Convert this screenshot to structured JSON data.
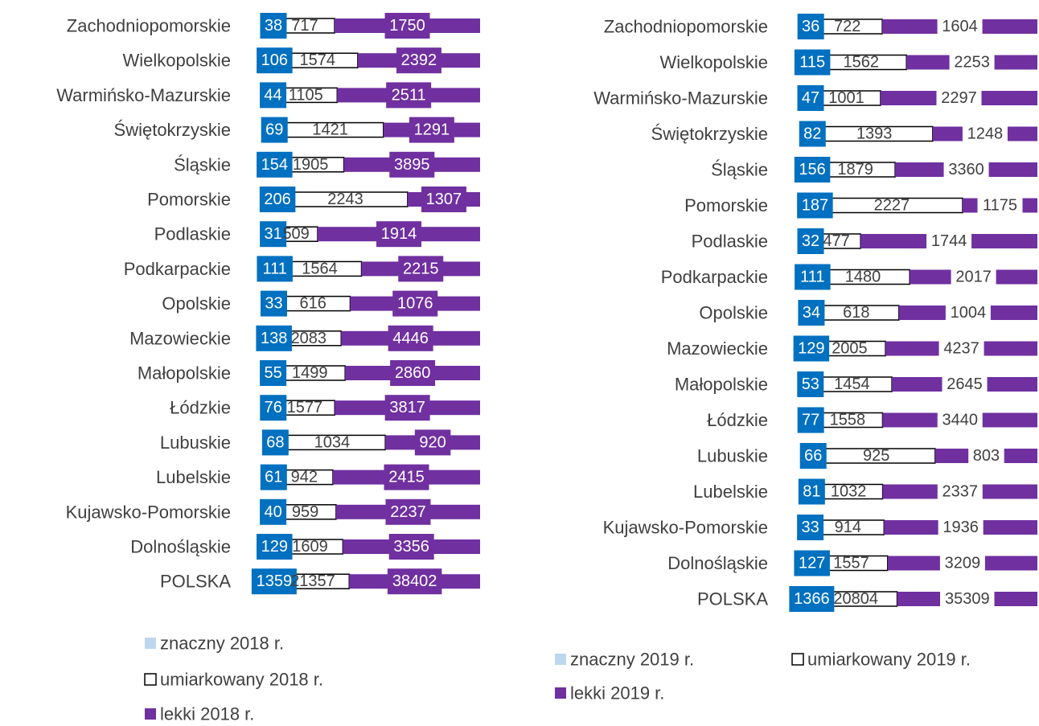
{
  "chart_data": [
    {
      "type": "bar",
      "orientation": "horizontal",
      "stacking": "percent",
      "legend": "bottom",
      "categories": [
        "Zachodniopomorskie",
        "Wielkopolskie",
        "Warmińsko-Mazurskie",
        "Świętokrzyskie",
        "Śląskie",
        "Pomorskie",
        "Podlaskie",
        "Podkarpackie",
        "Opolskie",
        "Mazowieckie",
        "Małopolskie",
        "Łódzkie",
        "Lubuskie",
        "Lubelskie",
        "Kujawsko-Pomorskie",
        "Dolnośląskie",
        "POLSKA"
      ],
      "series": [
        {
          "name": "znaczny 2018 r.",
          "color": "#bdd7ee",
          "values": [
            38,
            106,
            44,
            69,
            154,
            206,
            31,
            111,
            33,
            138,
            55,
            76,
            68,
            61,
            40,
            129,
            1359
          ]
        },
        {
          "name": "umiarkowany 2018 r.",
          "color": "#ffffff",
          "values": [
            717,
            1574,
            1105,
            1421,
            1905,
            2243,
            509,
            1564,
            616,
            2083,
            1499,
            1577,
            1034,
            942,
            959,
            1609,
            21357
          ]
        },
        {
          "name": "lekki 2018 r.",
          "color": "#7030a0",
          "values": [
            1750,
            2392,
            2511,
            1291,
            3895,
            1307,
            1914,
            2215,
            1076,
            4446,
            2860,
            3817,
            920,
            2415,
            2237,
            3356,
            38402
          ]
        }
      ]
    },
    {
      "type": "bar",
      "orientation": "horizontal",
      "stacking": "percent",
      "legend": "bottom",
      "categories": [
        "Zachodniopomorskie",
        "Wielkopolskie",
        "Warmińsko-Mazurskie",
        "Świętokrzyskie",
        "Śląskie",
        "Pomorskie",
        "Podlaskie",
        "Podkarpackie",
        "Opolskie",
        "Mazowieckie",
        "Małopolskie",
        "Łódzkie",
        "Lubuskie",
        "Lubelskie",
        "Kujawsko-Pomorskie",
        "Dolnośląskie",
        "POLSKA"
      ],
      "series": [
        {
          "name": "znaczny 2019 r.",
          "color": "#bdd7ee",
          "values": [
            36,
            115,
            47,
            82,
            156,
            187,
            32,
            111,
            34,
            129,
            53,
            77,
            66,
            81,
            33,
            127,
            1366
          ]
        },
        {
          "name": "umiarkowany 2019 r.",
          "color": "#ffffff",
          "values": [
            722,
            1562,
            1001,
            1393,
            1879,
            2227,
            477,
            1480,
            618,
            2005,
            1454,
            1558,
            925,
            1032,
            914,
            1557,
            20804
          ]
        },
        {
          "name": "lekki 2019 r.",
          "color": "#7030a0",
          "values": [
            1604,
            2253,
            2297,
            1248,
            3360,
            1175,
            1744,
            2017,
            1004,
            4237,
            2645,
            3440,
            803,
            2337,
            1936,
            3209,
            35309
          ]
        }
      ]
    }
  ]
}
